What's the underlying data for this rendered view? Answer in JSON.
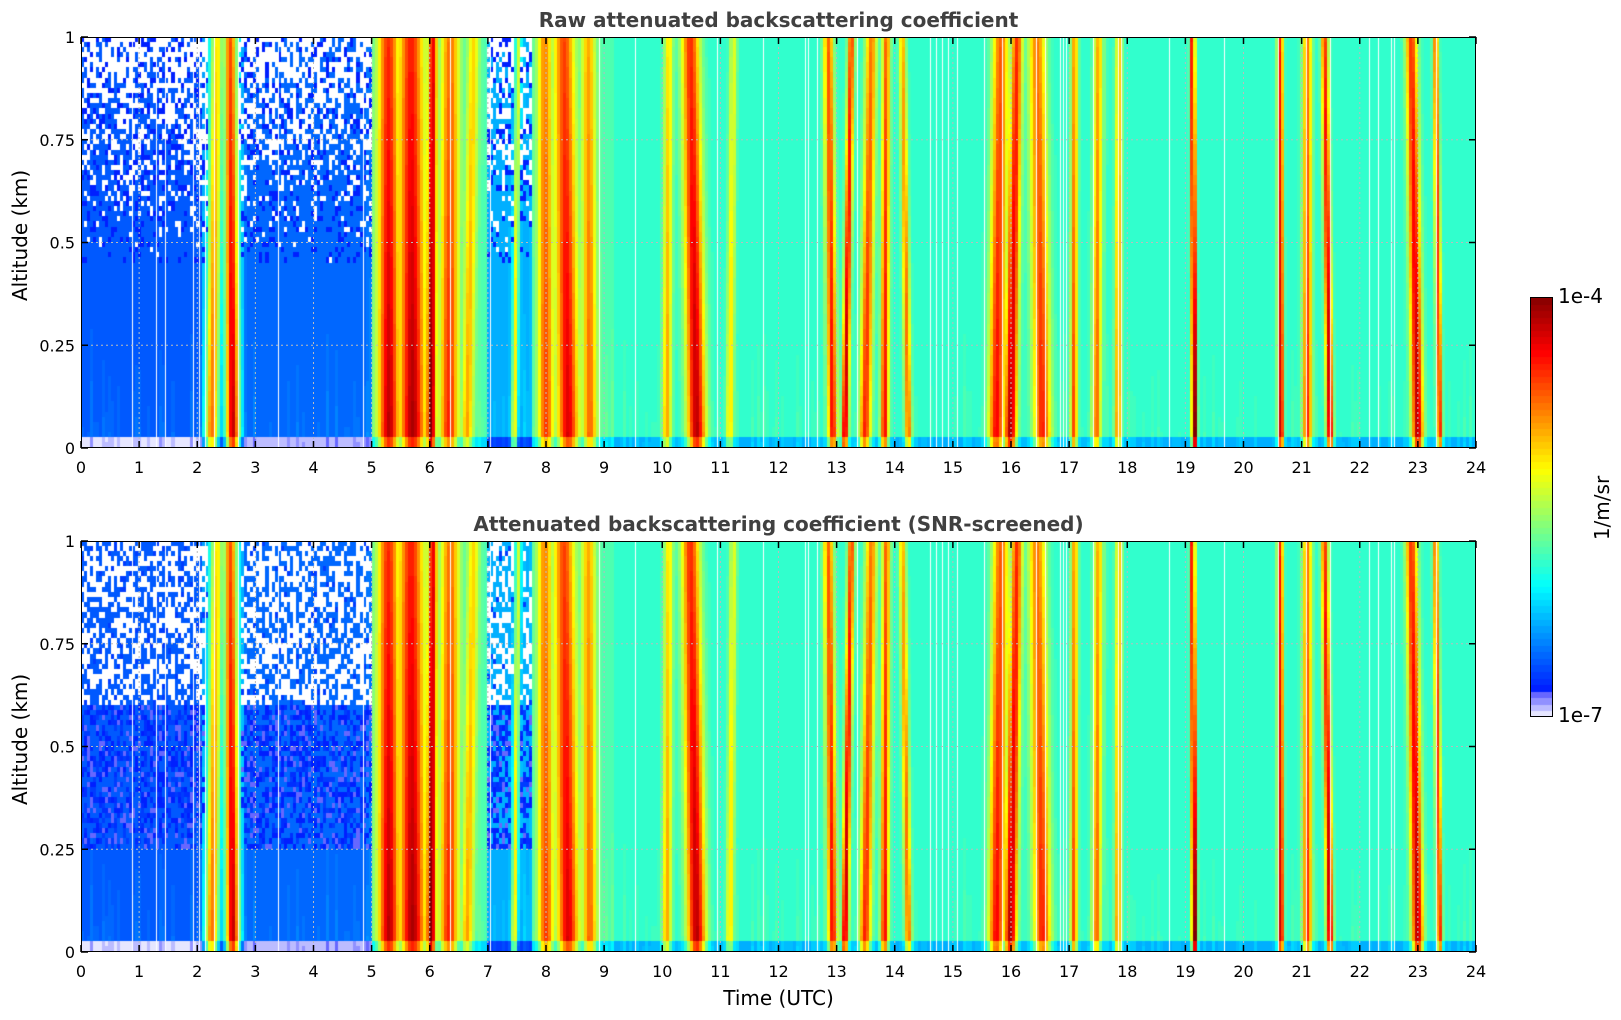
{
  "chart_data": [
    {
      "type": "heatmap",
      "title": "Raw attenuated backscattering coefficient",
      "xlabel": "Time (UTC)",
      "ylabel": "Altitude (km)",
      "xlim": [
        0,
        24
      ],
      "ylim": [
        0,
        1
      ],
      "x_ticks": [
        "0",
        "1",
        "2",
        "3",
        "4",
        "5",
        "6",
        "7",
        "8",
        "9",
        "10",
        "11",
        "12",
        "13",
        "14",
        "15",
        "16",
        "17",
        "18",
        "19",
        "20",
        "21",
        "22",
        "23",
        "24"
      ],
      "y_ticks": [
        "0",
        "0.25",
        "0.5",
        "0.75",
        "1"
      ],
      "grid": true,
      "screened": false
    },
    {
      "type": "heatmap",
      "title": "Attenuated backscattering coefficient (SNR-screened)",
      "xlabel": "Time (UTC)",
      "ylabel": "Altitude (km)",
      "xlim": [
        0,
        24
      ],
      "ylim": [
        0,
        1
      ],
      "x_ticks": [
        "0",
        "1",
        "2",
        "3",
        "4",
        "5",
        "6",
        "7",
        "8",
        "9",
        "10",
        "11",
        "12",
        "13",
        "14",
        "15",
        "16",
        "17",
        "18",
        "19",
        "20",
        "21",
        "22",
        "23",
        "24"
      ],
      "y_ticks": [
        "0",
        "0.25",
        "0.5",
        "0.75",
        "1"
      ],
      "grid": true,
      "screened": true
    }
  ],
  "shared": {
    "xlabel": "Time (UTC)",
    "colorbar": {
      "max_label": "1e-4",
      "min_label": "1e-7",
      "unit": "1/m/sr",
      "vmin_log10": -7,
      "vmax_log10": -4,
      "colormap": "jet"
    },
    "background_log10": [
      {
        "t0": 0.0,
        "t1": 2.1,
        "level": -6.6
      },
      {
        "t0": 2.1,
        "t1": 2.8,
        "level": -6.4
      },
      {
        "t0": 2.8,
        "t1": 5.0,
        "level": -6.55
      },
      {
        "t0": 5.0,
        "t1": 7.0,
        "level": -5.8
      },
      {
        "t0": 7.0,
        "t1": 7.8,
        "level": -6.3
      },
      {
        "t0": 7.8,
        "t1": 9.2,
        "level": -5.8
      },
      {
        "t0": 9.2,
        "t1": 24.0,
        "level": -5.9
      }
    ],
    "events": [
      {
        "t": 2.3,
        "w": 0.12,
        "peak": -4.9
      },
      {
        "t": 2.6,
        "w": 0.12,
        "peak": -4.35
      },
      {
        "t": 5.3,
        "w": 0.18,
        "peak": -4.3
      },
      {
        "t": 5.7,
        "w": 0.22,
        "peak": -4.25
      },
      {
        "t": 6.05,
        "w": 0.08,
        "peak": -4.05
      },
      {
        "t": 6.35,
        "w": 0.15,
        "peak": -4.6
      },
      {
        "t": 6.7,
        "w": 0.1,
        "peak": -5.0
      },
      {
        "t": 7.5,
        "w": 0.05,
        "peak": -5.2
      },
      {
        "t": 8.0,
        "w": 0.12,
        "peak": -4.7
      },
      {
        "t": 8.35,
        "w": 0.18,
        "peak": -4.4
      },
      {
        "t": 8.75,
        "w": 0.12,
        "peak": -4.8
      },
      {
        "t": 10.1,
        "w": 0.08,
        "peak": -5.0
      },
      {
        "t": 10.55,
        "w": 0.16,
        "peak": -4.3
      },
      {
        "t": 11.2,
        "w": 0.06,
        "peak": -5.2
      },
      {
        "t": 12.9,
        "w": 0.08,
        "peak": -4.5
      },
      {
        "t": 13.2,
        "w": 0.06,
        "peak": -4.3
      },
      {
        "t": 13.55,
        "w": 0.1,
        "peak": -4.6
      },
      {
        "t": 13.85,
        "w": 0.07,
        "peak": -4.5
      },
      {
        "t": 14.2,
        "w": 0.06,
        "peak": -4.8
      },
      {
        "t": 15.8,
        "w": 0.14,
        "peak": -4.5
      },
      {
        "t": 16.05,
        "w": 0.1,
        "peak": -4.3
      },
      {
        "t": 16.5,
        "w": 0.15,
        "peak": -4.6
      },
      {
        "t": 17.1,
        "w": 0.06,
        "peak": -4.7
      },
      {
        "t": 17.5,
        "w": 0.08,
        "peak": -4.8
      },
      {
        "t": 17.85,
        "w": 0.06,
        "peak": -4.9
      },
      {
        "t": 19.15,
        "w": 0.04,
        "peak": -4.05
      },
      {
        "t": 20.65,
        "w": 0.05,
        "peak": -4.1
      },
      {
        "t": 21.1,
        "w": 0.08,
        "peak": -4.6
      },
      {
        "t": 21.45,
        "w": 0.06,
        "peak": -4.3
      },
      {
        "t": 22.95,
        "w": 0.1,
        "peak": -4.3
      },
      {
        "t": 23.35,
        "w": 0.05,
        "peak": -4.5
      }
    ]
  }
}
